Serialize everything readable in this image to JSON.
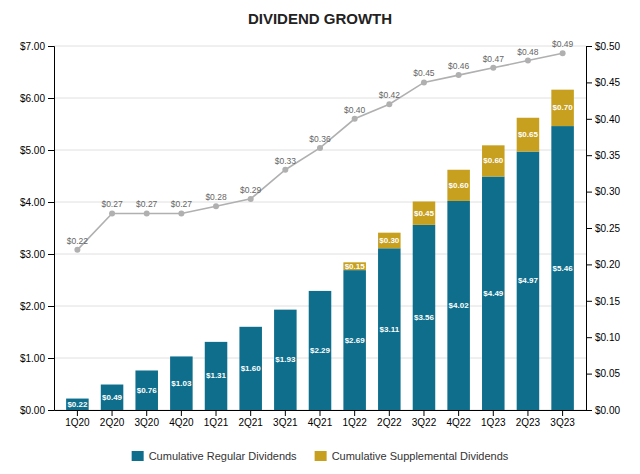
{
  "chart_data": {
    "type": "bar",
    "title": "DIVIDEND GROWTH",
    "categories": [
      "1Q20",
      "2Q20",
      "3Q20",
      "4Q20",
      "1Q21",
      "2Q21",
      "3Q21",
      "4Q21",
      "1Q22",
      "2Q22",
      "3Q22",
      "4Q22",
      "1Q23",
      "2Q23",
      "3Q23"
    ],
    "stacked": true,
    "grid": true,
    "legend": "bottom",
    "data_labels": true,
    "series": [
      {
        "name": "Cumulative Regular Dividends",
        "type": "bar",
        "color": "#0e6e8c",
        "values": [
          0.22,
          0.49,
          0.76,
          1.03,
          1.31,
          1.6,
          1.93,
          2.29,
          2.69,
          3.11,
          3.56,
          4.02,
          4.49,
          4.97,
          5.46
        ],
        "value_labels": [
          "$0.22",
          "$0.49",
          "$0.76",
          "$1.03",
          "$1.31",
          "$1.60",
          "$1.93",
          "$2.29",
          "$2.69",
          "$3.11",
          "$3.56",
          "$4.02",
          "$4.49",
          "$4.97",
          "$5.46"
        ]
      },
      {
        "name": "Cumulative Supplemental Dividends",
        "type": "bar",
        "color": "#c8a020",
        "values": [
          0.0,
          0.0,
          0.0,
          0.0,
          0.0,
          0.0,
          0.0,
          0.0,
          0.15,
          0.3,
          0.45,
          0.6,
          0.6,
          0.65,
          0.7
        ],
        "value_labels": [
          null,
          null,
          null,
          null,
          null,
          null,
          null,
          null,
          "$0.15",
          "$0.30",
          "$0.45",
          "$0.60",
          "$0.60",
          "$0.65",
          "$0.70"
        ]
      },
      {
        "type": "line",
        "axis": "y2",
        "color": "#b0b0b0",
        "marker": "circle",
        "values": [
          0.22,
          0.27,
          0.27,
          0.27,
          0.28,
          0.29,
          0.33,
          0.36,
          0.4,
          0.42,
          0.45,
          0.46,
          0.47,
          0.48,
          0.49
        ],
        "value_labels": [
          "$0.22",
          "$0.27",
          "$0.27",
          "$0.27",
          "$0.28",
          "$0.29",
          "$0.33",
          "$0.36",
          "$0.40",
          "$0.42",
          "$0.45",
          "$0.46",
          "$0.47",
          "$0.48",
          "$0.49"
        ]
      }
    ],
    "ylim": [
      0.0,
      7.0
    ],
    "yticks": [
      {
        "value": 0.0,
        "label": "$0.00"
      },
      {
        "value": 1.0,
        "label": "$1.00"
      },
      {
        "value": 2.0,
        "label": "$2.00"
      },
      {
        "value": 3.0,
        "label": "$3.00"
      },
      {
        "value": 4.0,
        "label": "$4.00"
      },
      {
        "value": 5.0,
        "label": "$5.00"
      },
      {
        "value": 6.0,
        "label": "$6.00"
      },
      {
        "value": 7.0,
        "label": "$7.00"
      }
    ],
    "y2lim": [
      0.0,
      0.5
    ],
    "y2ticks": [
      {
        "value": 0.0,
        "label": "$0.00"
      },
      {
        "value": 0.05,
        "label": "$0.05"
      },
      {
        "value": 0.1,
        "label": "$0.10"
      },
      {
        "value": 0.15,
        "label": "$0.15"
      },
      {
        "value": 0.2,
        "label": "$0.20"
      },
      {
        "value": 0.25,
        "label": "$0.25"
      },
      {
        "value": 0.3,
        "label": "$0.30"
      },
      {
        "value": 0.35,
        "label": "$0.35"
      },
      {
        "value": 0.4,
        "label": "$0.40"
      },
      {
        "value": 0.45,
        "label": "$0.45"
      },
      {
        "value": 0.5,
        "label": "$0.50"
      }
    ]
  }
}
